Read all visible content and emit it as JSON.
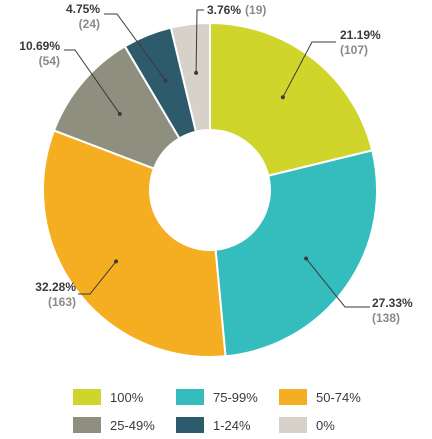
{
  "chart_data": {
    "type": "pie",
    "donut": true,
    "title": "",
    "slices": [
      {
        "name": "100%",
        "percent": 21.19,
        "count": 107,
        "color": "#cfd52a",
        "pct_label": "21.19%",
        "count_label": "(107)"
      },
      {
        "name": "75-99%",
        "percent": 27.33,
        "count": 138,
        "color": "#35bdbd",
        "pct_label": "27.33%",
        "count_label": "(138)"
      },
      {
        "name": "50-74%",
        "percent": 32.28,
        "count": 163,
        "color": "#f5ae21",
        "pct_label": "32.28%",
        "count_label": "(163)"
      },
      {
        "name": "25-49%",
        "percent": 10.69,
        "count": 54,
        "color": "#8f8f80",
        "pct_label": "10.69%",
        "count_label": "(54)"
      },
      {
        "name": "1-24%",
        "percent": 4.75,
        "count": 24,
        "color": "#2e5b6b",
        "pct_label": "4.75%",
        "count_label": "(24)"
      },
      {
        "name": "0%",
        "percent": 3.76,
        "count": 19,
        "color": "#d6d2c9",
        "pct_label": "3.76%",
        "count_label": "(19)"
      }
    ],
    "legend": {
      "placement": "bottom",
      "items": [
        "100%",
        "75-99%",
        "50-74%",
        "25-49%",
        "1-24%",
        "0%"
      ]
    }
  }
}
